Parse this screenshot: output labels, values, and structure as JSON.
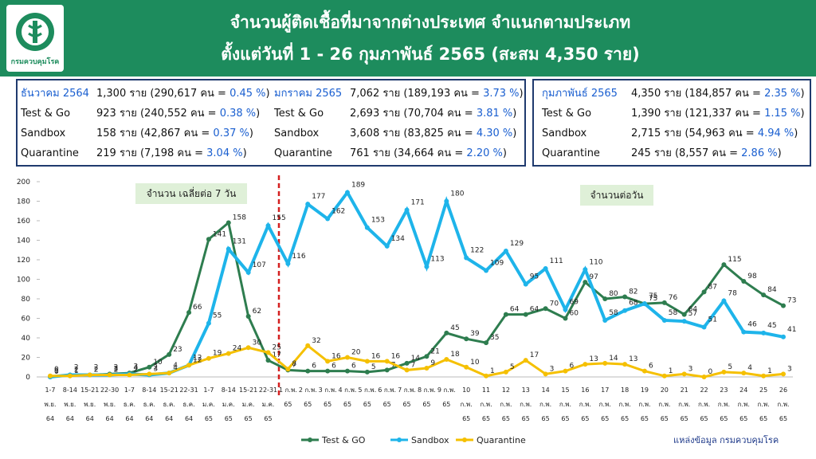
{
  "header": {
    "title_line1": "จำนวนผู้ติดเชื้อที่มาจากต่างประเทศ จำแนกตามประเภท",
    "title_line2": "ตั้งแต่วันที่  1 - 26  กุมภาพันธ์  2565 (สะสม 4,350 ราย)",
    "logo_text": "กรมควบคุมโรค"
  },
  "summary_boxes": [
    {
      "columns": [
        {
          "rows": [
            {
              "label": "ธันวาคม 2564",
              "detail": "1,300 ราย (290,617 คน = ",
              "pct": "0.45 %",
              "end": ")"
            },
            {
              "label": "Test & Go",
              "detail": "923  ราย (240,552 คน = ",
              "pct": "0.38 %",
              "end": ")"
            },
            {
              "label": "Sandbox",
              "detail": "158  ราย (42,867 คน  = ",
              "pct": "0.37 %",
              "end": ")"
            },
            {
              "label": "Quarantine",
              "detail": "219  ราย (7,198 คน   = ",
              "pct": "3.04 %",
              "end": ")"
            }
          ]
        },
        {
          "rows": [
            {
              "label": "มกราคม 2565",
              "detail": "7,062 ราย (189,193 คน = ",
              "pct": "3.73 %",
              "end": ")"
            },
            {
              "label": "Test & Go",
              "detail": "2,693 ราย (70,704 คน = ",
              "pct": "3.81 %",
              "end": ")"
            },
            {
              "label": "Sandbox",
              "detail": "3,608 ราย (83,825 คน = ",
              "pct": "4.30 %",
              "end": ")"
            },
            {
              "label": "Quarantine",
              "detail": "761 ราย (34,664 คน = ",
              "pct": "2.20 %",
              "end": ")"
            }
          ]
        }
      ]
    },
    {
      "columns": [
        {
          "rows": [
            {
              "label": "กุมภาพันธ์ 2565",
              "detail": "4,350 ราย (184,857 คน = ",
              "pct": "2.35 %",
              "end": ")"
            },
            {
              "label": "Test & Go",
              "detail": "1,390 ราย (121,337 คน  = ",
              "pct": "1.15 %",
              "end": ")"
            },
            {
              "label": "Sandbox",
              "detail": "2,715 ราย (54,963 คน = ",
              "pct": "4.94 %",
              "end": ")"
            },
            {
              "label": "Quarantine",
              "detail": "245 ราย (8,557 คน    = ",
              "pct": "2.86 %",
              "end": ")"
            }
          ]
        }
      ]
    }
  ],
  "chart_data": {
    "type": "line",
    "categories": [
      [
        "1-7",
        "พ.ย.",
        "64"
      ],
      [
        "8-14",
        "พ.ย.",
        "64"
      ],
      [
        "15-21",
        "พ.ย.",
        "64"
      ],
      [
        "22-30",
        "พ.ย.",
        "64"
      ],
      [
        "1-7",
        "ธ.ค.",
        "64"
      ],
      [
        "8-14",
        "ธ.ค.",
        "64"
      ],
      [
        "15-21",
        "ธ.ค.",
        "64"
      ],
      [
        "22-31",
        "ธ.ค.",
        "64"
      ],
      [
        "1-7",
        "ม.ค.",
        "65"
      ],
      [
        "8-14",
        "ม.ค.",
        "65"
      ],
      [
        "15-21",
        "ม.ค.",
        "65"
      ],
      [
        "22-31",
        "ม.ค.",
        "65"
      ],
      [
        "1 ก.พ.",
        "65"
      ],
      [
        "2 ก.พ.",
        "65"
      ],
      [
        "3 ก.พ.",
        "65"
      ],
      [
        "4 ก.พ.",
        "65"
      ],
      [
        "5 ก.พ.",
        "65"
      ],
      [
        "6 ก.พ.",
        "65"
      ],
      [
        "7 ก.พ.",
        "65"
      ],
      [
        "8 ก.พ.",
        "65"
      ],
      [
        "9 ก.พ.",
        "65"
      ],
      [
        "10",
        "ก.พ.",
        "65"
      ],
      [
        "11",
        "ก.พ.",
        "65"
      ],
      [
        "12",
        "ก.พ.",
        "65"
      ],
      [
        "13",
        "ก.พ.",
        "65"
      ],
      [
        "14",
        "ก.พ.",
        "65"
      ],
      [
        "15",
        "ก.พ.",
        "65"
      ],
      [
        "16",
        "ก.พ.",
        "65"
      ],
      [
        "17",
        "ก.พ.",
        "65"
      ],
      [
        "18",
        "ก.พ.",
        "65"
      ],
      [
        "19",
        "ก.พ.",
        "65"
      ],
      [
        "20",
        "ก.พ.",
        "65"
      ],
      [
        "21",
        "ก.พ.",
        "65"
      ],
      [
        "22",
        "ก.พ.",
        "65"
      ],
      [
        "23",
        "ก.พ.",
        "65"
      ],
      [
        "24",
        "ก.พ.",
        "65"
      ],
      [
        "25",
        "ก.พ.",
        "65"
      ],
      [
        "26",
        "ก.พ.",
        "65"
      ]
    ],
    "series": [
      {
        "name": "Test & GO",
        "color": "#2e7d4f",
        "values": [
          0,
          2,
          2,
          3,
          4,
          10,
          23,
          66,
          141,
          158,
          62,
          17,
          7,
          6,
          6,
          6,
          5,
          7,
          14,
          21,
          45,
          39,
          35,
          64,
          64,
          70,
          60,
          97,
          80,
          82,
          75,
          76,
          64,
          87,
          115,
          98,
          84,
          73
        ]
      },
      {
        "name": "Sandbox",
        "color": "#1eb4ea",
        "values": [
          0,
          2,
          2,
          2,
          3,
          2,
          4,
          12,
          55,
          131,
          107,
          155,
          116,
          177,
          162,
          189,
          153,
          134,
          171,
          113,
          180,
          122,
          109,
          129,
          95,
          111,
          69,
          110,
          58,
          68,
          75,
          58,
          57,
          51,
          78,
          46,
          45,
          41
        ]
      },
      {
        "name": "Quarantine",
        "color": "#f5c000",
        "values": [
          1,
          1,
          2,
          2,
          2,
          3,
          4,
          12,
          19,
          24,
          30,
          25,
          8,
          32,
          16,
          20,
          16,
          16,
          7,
          9,
          18,
          10,
          1,
          5,
          17,
          3,
          6,
          13,
          14,
          13,
          6,
          1,
          3,
          0,
          5,
          4,
          1,
          3
        ]
      }
    ],
    "ylim": [
      0,
      200
    ],
    "yticks": [
      0,
      20,
      40,
      60,
      80,
      100,
      120,
      140,
      160,
      180,
      200
    ],
    "annotations": [
      "จำนวน เฉลี่ยต่อ 7 วัน",
      "จำนวนต่อวัน"
    ],
    "source": "แหล่งข้อมูล กรมควบคุมโรค"
  }
}
